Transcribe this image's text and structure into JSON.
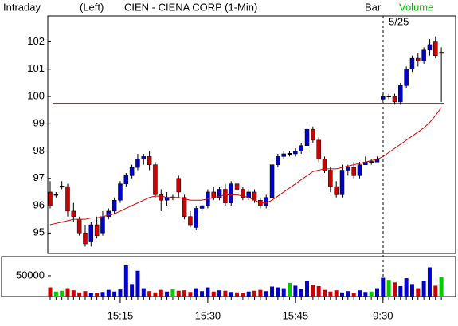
{
  "chart_data": {
    "type": "candlestick",
    "header_left": "Intraday",
    "header_side": "(Left)",
    "title": "CIEN - CIENA CORP (1-Min)",
    "header_bar": "Bar",
    "header_volume": "Volume",
    "date_label": "5/25",
    "categories": [
      null,
      null,
      null,
      null,
      null,
      null,
      null,
      null,
      null,
      null,
      null,
      null,
      "15:15",
      null,
      null,
      null,
      null,
      null,
      null,
      null,
      null,
      null,
      null,
      null,
      null,
      null,
      null,
      "15:30",
      null,
      null,
      null,
      null,
      null,
      null,
      null,
      null,
      null,
      null,
      null,
      null,
      null,
      null,
      "15:45",
      null,
      null,
      null,
      null,
      null,
      null,
      null,
      null,
      null,
      null,
      null,
      null,
      null,
      null,
      "9:30",
      null,
      null,
      null,
      null,
      null,
      null,
      null,
      null,
      null,
      null
    ],
    "open": [
      96.5,
      96.4,
      96.7,
      96.7,
      95.8,
      95.5,
      95.0,
      94.7,
      95.3,
      95.0,
      95.6,
      95.8,
      96.2,
      96.8,
      97.1,
      97.4,
      97.7,
      97.8,
      97.5,
      96.4,
      96.2,
      96.3,
      97.0,
      96.3,
      95.6,
      95.2,
      95.9,
      96.0,
      96.5,
      96.3,
      96.6,
      96.1,
      96.8,
      96.6,
      96.3,
      96.5,
      96.2,
      96.0,
      96.3,
      97.5,
      97.8,
      97.9,
      97.9,
      98.0,
      98.2,
      98.8,
      98.4,
      97.7,
      97.3,
      96.7,
      96.4,
      97.3,
      97.4,
      97.1,
      97.5,
      97.6,
      97.6,
      99.9,
      100.0,
      100.0,
      99.8,
      100.4,
      101.0,
      101.4,
      101.3,
      101.7,
      102.0,
      101.6
    ],
    "high": [
      96.9,
      96.5,
      96.9,
      96.8,
      96.1,
      95.6,
      95.3,
      95.4,
      95.6,
      95.8,
      95.9,
      96.3,
      96.9,
      97.2,
      97.5,
      97.9,
      97.9,
      98.0,
      97.6,
      96.6,
      96.5,
      96.4,
      97.1,
      96.4,
      95.8,
      96.0,
      96.1,
      96.6,
      96.7,
      96.7,
      96.8,
      96.9,
      96.9,
      96.7,
      96.6,
      96.6,
      96.3,
      96.4,
      97.6,
      97.9,
      98.0,
      98.0,
      98.1,
      98.3,
      98.9,
      98.9,
      98.5,
      97.8,
      97.4,
      96.9,
      97.5,
      97.5,
      97.6,
      97.6,
      97.8,
      97.7,
      97.8,
      100.1,
      100.1,
      100.1,
      100.5,
      101.1,
      101.5,
      101.6,
      101.8,
      102.1,
      102.2,
      101.8
    ],
    "low": [
      95.9,
      96.3,
      96.6,
      95.6,
      95.4,
      94.9,
      94.5,
      94.5,
      94.8,
      94.9,
      95.5,
      95.7,
      96.1,
      96.7,
      97.0,
      97.3,
      97.5,
      97.3,
      96.3,
      95.8,
      96.0,
      96.2,
      96.3,
      95.5,
      95.2,
      95.1,
      95.7,
      95.9,
      96.2,
      96.2,
      96.0,
      96.0,
      96.5,
      96.2,
      96.2,
      96.1,
      95.9,
      95.9,
      96.2,
      97.4,
      97.7,
      97.8,
      97.8,
      97.9,
      98.1,
      98.3,
      97.6,
      97.2,
      96.5,
      96.3,
      96.3,
      97.1,
      97.0,
      97.0,
      97.5,
      97.5,
      97.6,
      99.8,
      99.9,
      99.7,
      99.7,
      100.3,
      100.9,
      101.1,
      101.2,
      101.5,
      101.4,
      99.8
    ],
    "close": [
      96.0,
      96.4,
      96.7,
      95.8,
      95.6,
      95.0,
      94.6,
      95.3,
      94.9,
      95.6,
      95.8,
      96.2,
      96.8,
      97.1,
      97.4,
      97.7,
      97.8,
      97.5,
      96.4,
      96.2,
      96.3,
      96.3,
      96.5,
      95.6,
      95.3,
      95.9,
      96.0,
      96.5,
      96.3,
      96.6,
      96.1,
      96.8,
      96.6,
      96.3,
      96.5,
      96.2,
      96.0,
      96.3,
      97.5,
      97.8,
      97.9,
      97.9,
      98.0,
      98.2,
      98.8,
      98.4,
      97.7,
      97.3,
      96.7,
      96.4,
      97.3,
      97.4,
      97.1,
      97.5,
      97.6,
      97.6,
      97.7,
      100.0,
      100.0,
      99.8,
      100.4,
      101.0,
      101.4,
      101.3,
      101.7,
      101.9,
      101.5,
      101.6
    ],
    "up_color": "#0000cc",
    "down_color": "#cc0000",
    "flat_color": "#00cc00",
    "moving_average": {
      "color": "#dd0000",
      "values": [
        95.3,
        95.35,
        95.4,
        95.45,
        95.5,
        95.5,
        95.5,
        95.55,
        95.55,
        95.6,
        95.65,
        95.7,
        95.8,
        95.9,
        96.0,
        96.1,
        96.2,
        96.3,
        96.35,
        96.35,
        96.3,
        96.3,
        96.3,
        96.25,
        96.2,
        96.2,
        96.2,
        96.25,
        96.3,
        96.35,
        96.4,
        96.4,
        96.4,
        96.35,
        96.3,
        96.2,
        96.1,
        96.1,
        96.2,
        96.35,
        96.5,
        96.65,
        96.8,
        96.95,
        97.1,
        97.25,
        97.3,
        97.35,
        97.35,
        97.35,
        97.4,
        97.45,
        97.5,
        97.55,
        97.6,
        97.65,
        97.7,
        97.8,
        97.95,
        98.1,
        98.25,
        98.4,
        98.55,
        98.7,
        98.85,
        99.05,
        99.3,
        99.6
      ]
    },
    "reference_line": {
      "value": 99.75,
      "color": "#cc0000"
    },
    "ylim": [
      94.25,
      102.95
    ],
    "yticks": [
      95,
      96,
      97,
      98,
      99,
      100,
      101,
      102
    ],
    "volume": {
      "values": [
        22000,
        12000,
        14000,
        20000,
        15000,
        10000,
        13000,
        9000,
        8000,
        11000,
        16000,
        12000,
        17000,
        75000,
        30000,
        62000,
        20000,
        13000,
        10000,
        16000,
        12000,
        18000,
        14000,
        15000,
        11000,
        20000,
        13000,
        22000,
        12000,
        15000,
        14000,
        11000,
        10000,
        9000,
        12000,
        14000,
        16000,
        13000,
        24000,
        22000,
        20000,
        33000,
        26000,
        18000,
        38000,
        28000,
        25000,
        16000,
        12000,
        15000,
        10000,
        13000,
        9000,
        15000,
        11000,
        12000,
        20000,
        45000,
        40000,
        34000,
        25000,
        44000,
        30000,
        20000,
        38000,
        70000,
        26000,
        47000
      ],
      "ylim": [
        0,
        96000
      ],
      "yticks": [
        50000
      ]
    }
  }
}
